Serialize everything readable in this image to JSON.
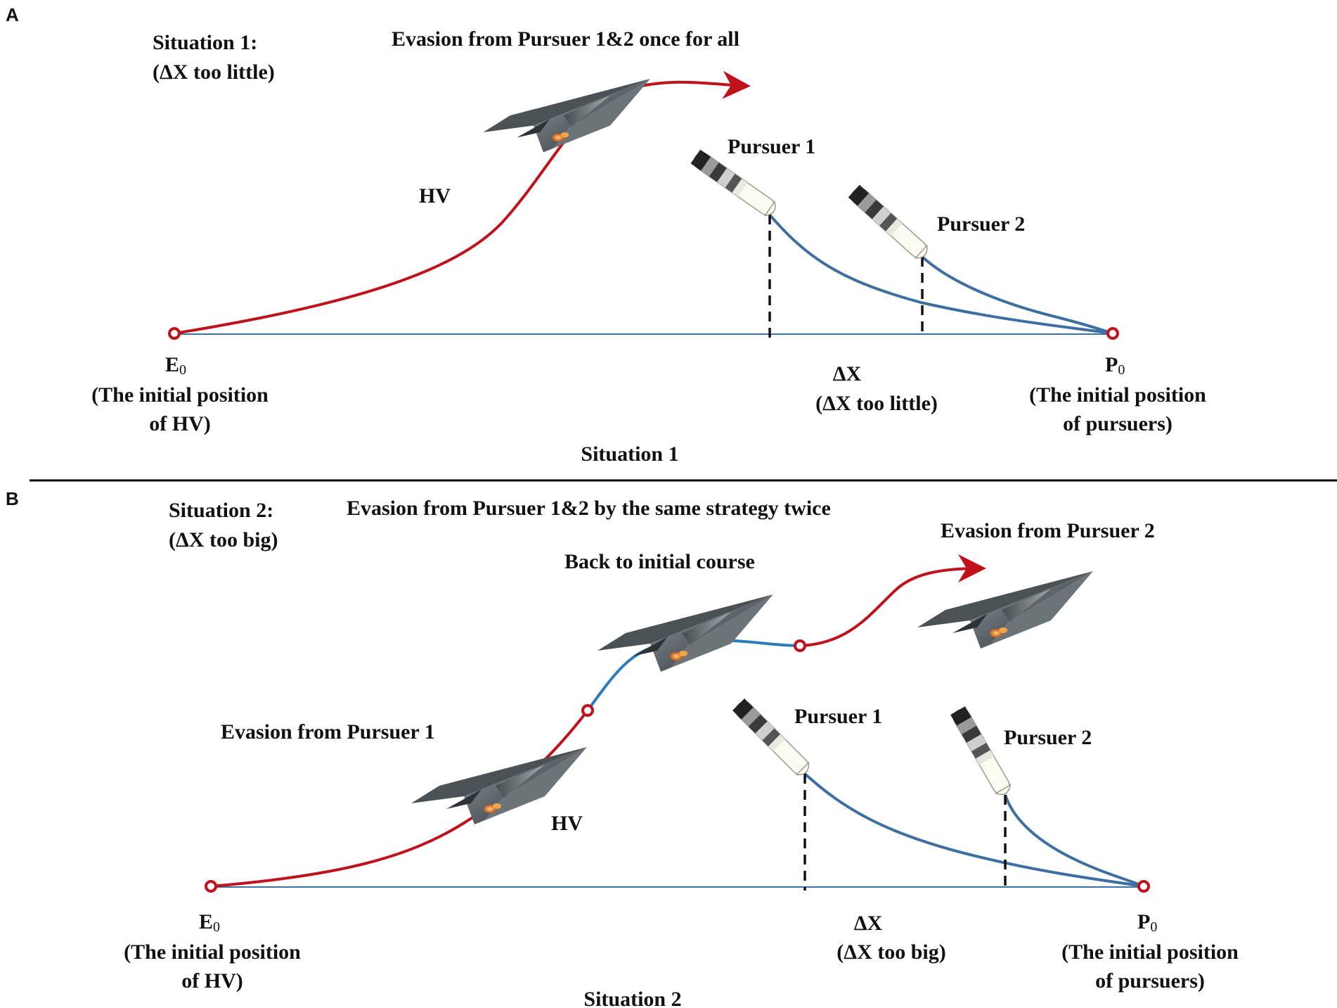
{
  "panel_a": {
    "letter": "A",
    "situation_heading": "Situation 1:",
    "situation_condition": "(ΔX too little)",
    "title": "Evasion from Pursuer 1&2 once for all",
    "hv_label": "HV",
    "pursuer1_label": "Pursuer 1",
    "pursuer2_label": "Pursuer 2",
    "e0_main": "E",
    "e0_sub": "0",
    "e0_desc_1": "(The initial position",
    "e0_desc_2": "of HV)",
    "p0_main": "P",
    "p0_sub": "0",
    "p0_desc_1": "(The initial position",
    "p0_desc_2": "of pursuers)",
    "dx_label": "ΔX",
    "dx_desc": "(ΔX too little)",
    "caption": "Situation 1"
  },
  "panel_b": {
    "letter": "B",
    "situation_heading": "Situation 2:",
    "situation_condition": "(ΔX too big)",
    "title": "Evasion from Pursuer 1&2 by the same strategy twice",
    "evasion2_label": "Evasion from Pursuer 2",
    "back_label": "Back to initial course",
    "evasion1_label": "Evasion from Pursuer 1",
    "hv_label": "HV",
    "pursuer1_label": "Pursuer 1",
    "pursuer2_label": "Pursuer 2",
    "e0_main": "E",
    "e0_sub": "0",
    "e0_desc_1": "(The initial position",
    "e0_desc_2": "of HV)",
    "p0_main": "P",
    "p0_sub": "0",
    "p0_desc_1": "(The initial position",
    "p0_desc_2": "of pursuers)",
    "dx_label": "ΔX",
    "dx_desc": "(ΔX too big)",
    "caption": "Situation 2"
  },
  "colors": {
    "evader_path": "#c0121b",
    "pursuer_path": "#3d6fa0",
    "return_path": "#2b7bbf",
    "baseline": "#3d6fa0",
    "divider": "#000000"
  }
}
